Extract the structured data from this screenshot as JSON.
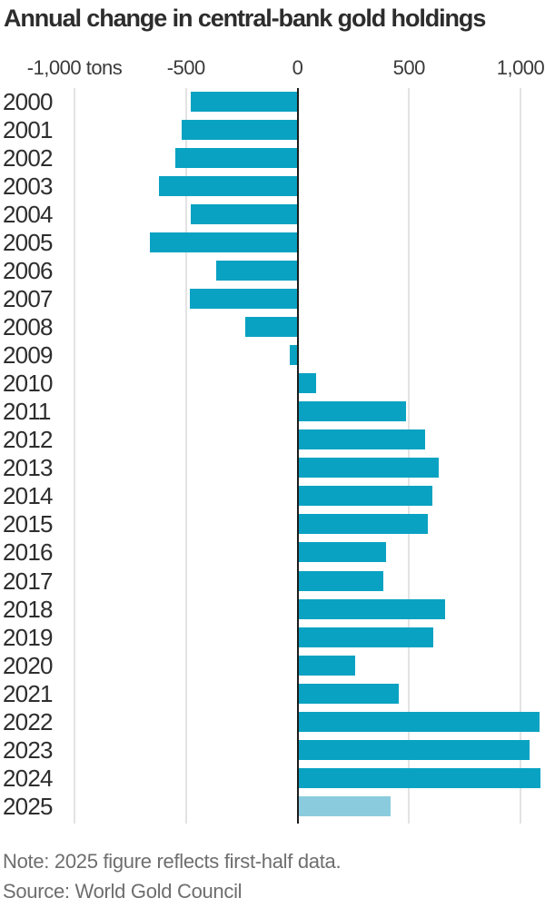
{
  "title": "Annual change in central-bank gold holdings",
  "note": "Note: 2025 figure reflects first-half data.",
  "source": "Source: World Gold Council",
  "chart_data": {
    "type": "bar",
    "orientation": "horizontal",
    "title": "Annual change in central-bank gold holdings",
    "unit": "tons",
    "categories": [
      "2000",
      "2001",
      "2002",
      "2003",
      "2004",
      "2005",
      "2006",
      "2007",
      "2008",
      "2009",
      "2010",
      "2011",
      "2012",
      "2013",
      "2014",
      "2015",
      "2016",
      "2017",
      "2018",
      "2019",
      "2020",
      "2021",
      "2022",
      "2023",
      "2024",
      "2025"
    ],
    "values": [
      -479,
      -520,
      -547,
      -620,
      -479,
      -663,
      -365,
      -484,
      -235,
      -34,
      79,
      481,
      569,
      629,
      601,
      580,
      395,
      379,
      656,
      605,
      255,
      450,
      1082,
      1037,
      1086,
      415
    ],
    "highlight_category": "2025",
    "bar_color": "#0aa2c2",
    "highlight_bar_color": "#8accdd",
    "gridline_color": "#e3e3e3",
    "zero_axis_color": "#1c1c1c",
    "x_axis": {
      "ticks": [
        -1000,
        -500,
        0,
        500,
        1000
      ],
      "tick_labels": [
        "-1,000 tons",
        "-500",
        "0",
        "500",
        "1,000"
      ],
      "range": [
        -1150,
        1110
      ],
      "grid": true,
      "legend": "none"
    }
  }
}
